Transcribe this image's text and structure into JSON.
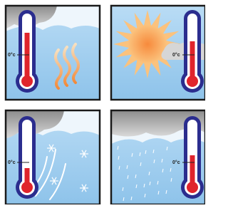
{
  "panels": [
    {
      "label": "0°c"
    },
    {
      "label": "0°c"
    },
    {
      "label": "0°c"
    },
    {
      "label": "0°c"
    }
  ]
}
